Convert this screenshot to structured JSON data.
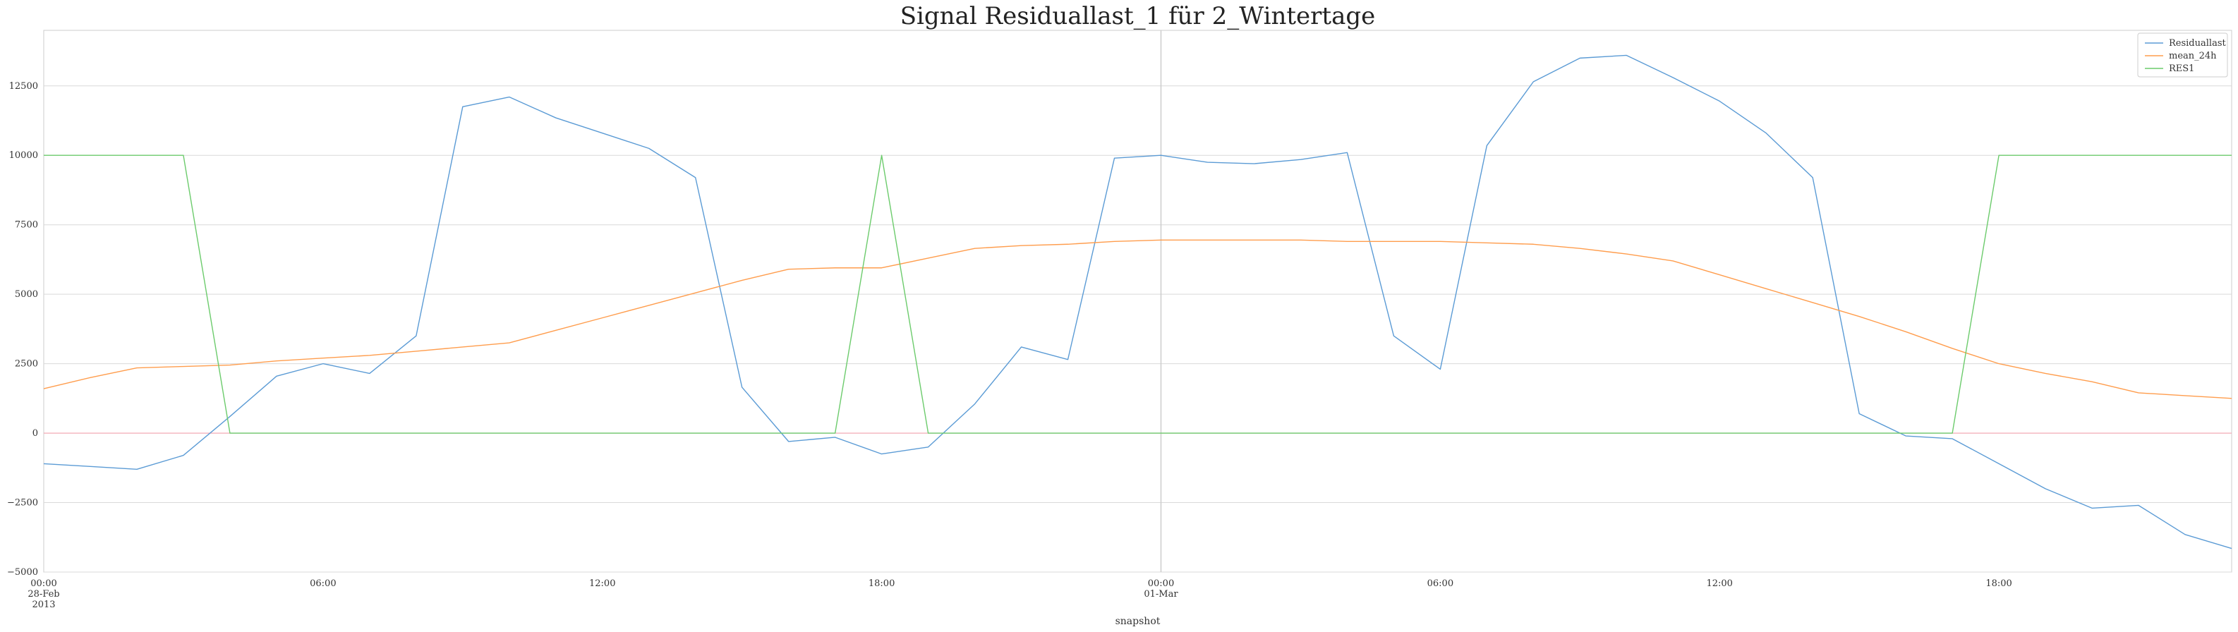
{
  "chart_data": {
    "type": "line",
    "title": "Signal Residuallast_1 für 2_Wintertage",
    "xlabel": "snapshot",
    "ylabel": "",
    "xlim_hours": [
      0,
      47
    ],
    "ylim": [
      -5000,
      14500
    ],
    "yticks": [
      -5000,
      -2500,
      0,
      2500,
      5000,
      7500,
      10000,
      12500
    ],
    "ytick_labels": [
      "−5000",
      "−2500",
      "0",
      "2500",
      "5000",
      "7500",
      "10000",
      "12500"
    ],
    "xticks": [
      {
        "hour": 0,
        "lines": [
          "00:00",
          "28-Feb",
          "2013"
        ]
      },
      {
        "hour": 6,
        "lines": [
          "06:00"
        ]
      },
      {
        "hour": 12,
        "lines": [
          "12:00"
        ]
      },
      {
        "hour": 18,
        "lines": [
          "18:00"
        ]
      },
      {
        "hour": 24,
        "lines": [
          "00:00",
          "01-Mar"
        ]
      },
      {
        "hour": 30,
        "lines": [
          "06:00"
        ]
      },
      {
        "hour": 36,
        "lines": [
          "12:00"
        ]
      },
      {
        "hour": 42,
        "lines": [
          "18:00"
        ]
      }
    ],
    "grid": true,
    "legend_position": "top-right",
    "zero_line_color": "#f4a3b0",
    "midnight_line_color": "#cccccc",
    "x": [
      0,
      1,
      2,
      3,
      4,
      5,
      6,
      7,
      8,
      9,
      10,
      11,
      12,
      13,
      14,
      15,
      16,
      17,
      18,
      19,
      20,
      21,
      22,
      23,
      24,
      25,
      26,
      27,
      28,
      29,
      30,
      31,
      32,
      33,
      34,
      35,
      36,
      37,
      38,
      39,
      40,
      41,
      42,
      43,
      44,
      45,
      46,
      47
    ],
    "series": [
      {
        "name": "Residuallast",
        "color": "#5b9bd5",
        "values": [
          -1100,
          -1200,
          -1300,
          -800,
          600,
          2050,
          2500,
          2150,
          3500,
          11750,
          12100,
          11350,
          10800,
          10250,
          9200,
          1650,
          -300,
          -150,
          -750,
          -500,
          1050,
          3100,
          2650,
          9900,
          10000,
          9750,
          9700,
          9850,
          10100,
          3500,
          2300,
          10350,
          12650,
          13500,
          13600,
          12800,
          11950,
          10800,
          9200,
          700,
          -100,
          -200,
          -1100,
          -2000,
          -2700,
          -2600,
          -3650,
          -4150
        ]
      },
      {
        "name": "mean_24h",
        "color": "#ff9d4d",
        "values": [
          1600,
          2000,
          2350,
          2400,
          2450,
          2600,
          2700,
          2800,
          2950,
          3100,
          3250,
          3700,
          4150,
          4600,
          5050,
          5500,
          5900,
          5950,
          5950,
          6300,
          6650,
          6750,
          6800,
          6900,
          6950,
          6950,
          6950,
          6950,
          6900,
          6900,
          6900,
          6850,
          6800,
          6650,
          6450,
          6200,
          5700,
          5200,
          4700,
          4200,
          3650,
          3050,
          2500,
          2150,
          1850,
          1450,
          1350,
          1250
        ]
      },
      {
        "name": "RES1",
        "color": "#6ccb6c",
        "values": [
          10000,
          10000,
          10000,
          10000,
          0,
          0,
          0,
          0,
          0,
          0,
          0,
          0,
          0,
          0,
          0,
          0,
          0,
          0,
          10000,
          0,
          0,
          0,
          0,
          0,
          0,
          0,
          0,
          0,
          0,
          0,
          0,
          0,
          0,
          0,
          0,
          0,
          0,
          0,
          0,
          0,
          0,
          0,
          10000,
          10000,
          10000,
          10000,
          10000,
          10000
        ]
      }
    ]
  }
}
